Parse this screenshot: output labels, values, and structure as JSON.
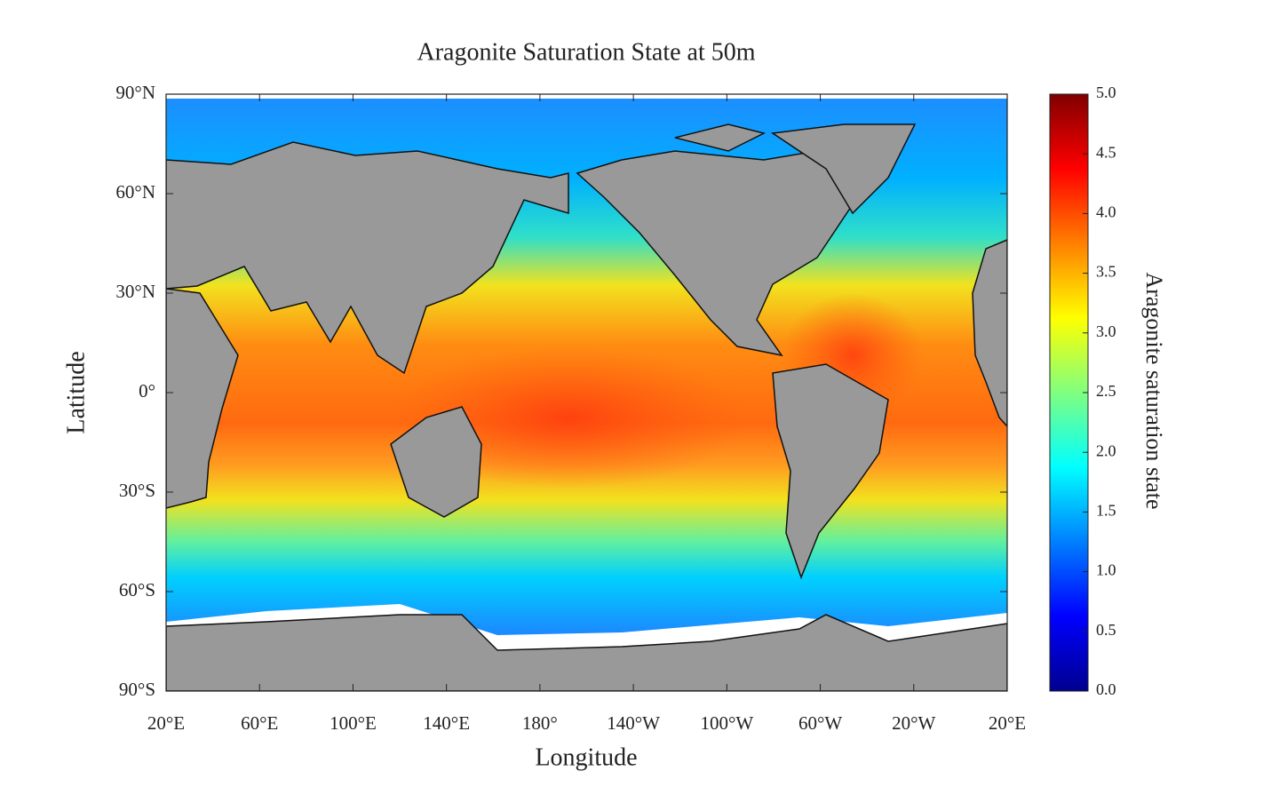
{
  "map": {
    "title": "Aragonite Saturation State at 50m",
    "x_label": "Longitude",
    "y_label": "Latitude",
    "xlim": [
      20,
      380
    ],
    "ylim": [
      -90,
      90
    ],
    "lon_ticks": [
      {
        "value": 20,
        "label": "20°E"
      },
      {
        "value": 60,
        "label": "60°E"
      },
      {
        "value": 100,
        "label": "100°E"
      },
      {
        "value": 140,
        "label": "140°E"
      },
      {
        "value": 180,
        "label": "180°"
      },
      {
        "value": 220,
        "label": "140°W"
      },
      {
        "value": 260,
        "label": "100°W"
      },
      {
        "value": 300,
        "label": "60°W"
      },
      {
        "value": 340,
        "label": "20°W"
      },
      {
        "value": 380,
        "label": "20°E"
      }
    ],
    "lat_ticks": [
      {
        "value": 90,
        "label": "90°N"
      },
      {
        "value": 60,
        "label": "60°N"
      },
      {
        "value": 30,
        "label": "30°N"
      },
      {
        "value": 0,
        "label": "0°"
      },
      {
        "value": -30,
        "label": "30°S"
      },
      {
        "value": -60,
        "label": "60°S"
      },
      {
        "value": -90,
        "label": "90°S"
      }
    ],
    "colorbar": {
      "label": "Aragonite saturation state",
      "lim": [
        0,
        5
      ],
      "colormap": "jet",
      "ticks": [
        {
          "value": 5,
          "label": "5.0"
        },
        {
          "value": 4.5,
          "label": "4.5"
        },
        {
          "value": 4,
          "label": "4.0"
        },
        {
          "value": 3.5,
          "label": "3.5"
        },
        {
          "value": 3,
          "label": "3.0"
        },
        {
          "value": 2.5,
          "label": "2.5"
        },
        {
          "value": 2,
          "label": "2.0"
        },
        {
          "value": 1.5,
          "label": "1.5"
        },
        {
          "value": 1,
          "label": "1.0"
        },
        {
          "value": 0.5,
          "label": "0.5"
        },
        {
          "value": 0,
          "label": "0.0"
        }
      ]
    }
  }
}
